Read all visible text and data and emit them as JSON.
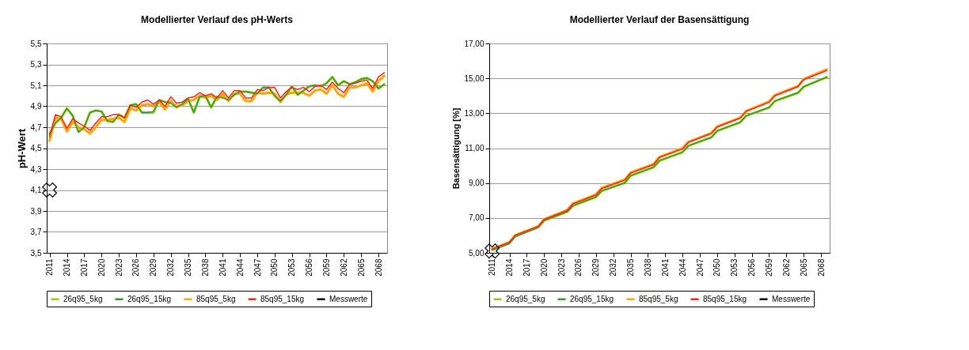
{
  "chart_data": [
    {
      "type": "line",
      "title": "Modellierter Verlauf des pH-Werts",
      "ylabel": "pH-Wert",
      "x": [
        2011,
        2012,
        2013,
        2014,
        2015,
        2016,
        2017,
        2018,
        2019,
        2020,
        2021,
        2022,
        2023,
        2024,
        2025,
        2026,
        2027,
        2028,
        2029,
        2030,
        2031,
        2032,
        2033,
        2034,
        2035,
        2036,
        2037,
        2038,
        2039,
        2040,
        2041,
        2042,
        2043,
        2044,
        2045,
        2046,
        2047,
        2048,
        2049,
        2050,
        2051,
        2052,
        2053,
        2054,
        2055,
        2056,
        2057,
        2058,
        2059,
        2060,
        2061,
        2062,
        2063,
        2064,
        2065,
        2066,
        2067,
        2068,
        2069
      ],
      "xlim": [
        2010.5,
        2069.5
      ],
      "xticks": [
        2011,
        2014,
        2017,
        2020,
        2023,
        2026,
        2029,
        2032,
        2035,
        2038,
        2041,
        2044,
        2047,
        2050,
        2053,
        2056,
        2059,
        2062,
        2065,
        2068
      ],
      "ylim": [
        3.5,
        5.5
      ],
      "yticks": [
        {
          "value": 3.5,
          "label": "3,5"
        },
        {
          "value": 3.7,
          "label": "3,7"
        },
        {
          "value": 3.9,
          "label": "3,9"
        },
        {
          "value": 4.1,
          "label": "4,1"
        },
        {
          "value": 4.3,
          "label": "4,3"
        },
        {
          "value": 4.5,
          "label": "4,5"
        },
        {
          "value": 4.7,
          "label": "4,7"
        },
        {
          "value": 4.9,
          "label": "4,9"
        },
        {
          "value": 5.1,
          "label": "5,1"
        },
        {
          "value": 5.3,
          "label": "5,3"
        },
        {
          "value": 5.5,
          "label": "5,5"
        }
      ],
      "grid": "y",
      "legend": "bottom",
      "series": [
        {
          "name": "26q95_5kg",
          "color": "#99cc00",
          "values": [
            4.64,
            4.74,
            4.79,
            4.88,
            4.81,
            4.66,
            4.7,
            4.84,
            4.86,
            4.85,
            4.76,
            4.75,
            4.82,
            4.79,
            4.91,
            4.92,
            4.84,
            4.84,
            4.84,
            4.96,
            4.94,
            4.94,
            4.89,
            4.92,
            4.97,
            4.84,
            4.99,
            5.0,
            4.89,
            4.99,
            4.99,
            4.96,
            5.01,
            5.04,
            5.04,
            5.03,
            5.02,
            5.08,
            5.08,
            5.0,
            4.95,
            5.01,
            5.09,
            5.01,
            5.05,
            5.09,
            5.1,
            5.09,
            5.12,
            5.18,
            5.1,
            5.14,
            5.11,
            5.13,
            5.16,
            5.17,
            5.14,
            5.07,
            5.11
          ]
        },
        {
          "name": "26q95_15kg",
          "color": "#339933",
          "values": [
            4.63,
            4.74,
            4.79,
            4.88,
            4.81,
            4.65,
            4.7,
            4.84,
            4.86,
            4.85,
            4.76,
            4.75,
            4.82,
            4.79,
            4.91,
            4.92,
            4.84,
            4.84,
            4.85,
            4.96,
            4.94,
            4.93,
            4.89,
            4.92,
            4.97,
            4.84,
            4.99,
            5.0,
            4.89,
            4.99,
            4.98,
            4.96,
            5.01,
            5.04,
            5.04,
            5.03,
            5.02,
            5.08,
            5.08,
            5.0,
            4.95,
            5.01,
            5.09,
            5.01,
            5.05,
            5.09,
            5.1,
            5.09,
            5.12,
            5.18,
            5.1,
            5.14,
            5.11,
            5.13,
            5.16,
            5.17,
            5.14,
            5.07,
            5.11
          ]
        },
        {
          "name": "85q95_5kg",
          "color": "#ffa500",
          "values": [
            4.57,
            4.79,
            4.78,
            4.66,
            4.75,
            4.7,
            4.68,
            4.64,
            4.7,
            4.77,
            4.77,
            4.78,
            4.79,
            4.75,
            4.88,
            4.86,
            4.91,
            4.92,
            4.9,
            4.94,
            4.87,
            4.95,
            4.9,
            4.91,
            4.95,
            4.96,
            5.0,
            4.98,
            5.0,
            4.96,
            5.02,
            4.95,
            5.02,
            5.02,
            4.95,
            4.95,
            5.03,
            5.02,
            5.03,
            5.02,
            4.94,
            5.01,
            5.03,
            5.03,
            5.03,
            5.0,
            5.05,
            5.06,
            5.02,
            5.1,
            5.02,
            4.99,
            5.08,
            5.08,
            5.1,
            5.12,
            5.04,
            5.14,
            5.19
          ]
        },
        {
          "name": "85q95_15kg",
          "color": "#ff2020",
          "values": [
            4.61,
            4.82,
            4.8,
            4.69,
            4.78,
            4.74,
            4.71,
            4.67,
            4.74,
            4.8,
            4.8,
            4.82,
            4.82,
            4.79,
            4.91,
            4.89,
            4.94,
            4.96,
            4.92,
            4.96,
            4.9,
            4.99,
            4.93,
            4.94,
            4.98,
            4.99,
            5.03,
            5.0,
            5.02,
            4.98,
            5.05,
            4.98,
            5.05,
            5.05,
            4.98,
            4.98,
            5.06,
            5.05,
            5.08,
            5.08,
            4.98,
            5.04,
            5.08,
            5.06,
            5.08,
            5.04,
            5.09,
            5.1,
            5.06,
            5.13,
            5.07,
            5.03,
            5.11,
            5.12,
            5.14,
            5.15,
            5.07,
            5.18,
            5.22
          ]
        },
        {
          "name": "Messwerte",
          "type": "scatter",
          "color": "#000000",
          "marker": "cross",
          "x": [
            2011
          ],
          "values": [
            4.1
          ]
        }
      ]
    },
    {
      "type": "line",
      "title": "Modellierter Verlauf der Basensättigung",
      "ylabel": "Basensättigung [%]",
      "xlim": [
        2010.5,
        2069.5
      ],
      "xticks": [
        2011,
        2014,
        2017,
        2020,
        2023,
        2026,
        2029,
        2032,
        2035,
        2038,
        2041,
        2044,
        2047,
        2050,
        2053,
        2056,
        2059,
        2062,
        2065,
        2068
      ],
      "ylim": [
        5,
        17
      ],
      "yticks": [
        {
          "value": 5,
          "label": "5,00"
        },
        {
          "value": 7,
          "label": "7,00"
        },
        {
          "value": 9,
          "label": "9,00"
        },
        {
          "value": 11,
          "label": "11,00"
        },
        {
          "value": 13,
          "label": "13,00"
        },
        {
          "value": 15,
          "label": "15,00"
        },
        {
          "value": 17,
          "label": "17,00"
        }
      ],
      "grid": "y",
      "legend": "bottom",
      "series": [
        {
          "name": "26q95_5kg",
          "color": "#99cc00",
          "x": [
            2011,
            2014,
            2015,
            2019,
            2020,
            2024,
            2025,
            2029,
            2030,
            2034,
            2035,
            2039,
            2040,
            2044,
            2045,
            2049,
            2050,
            2054,
            2055,
            2059,
            2060,
            2064,
            2065,
            2069
          ],
          "values": [
            5.22,
            5.6,
            6.0,
            6.48,
            6.85,
            7.35,
            7.7,
            8.2,
            8.55,
            9.01,
            9.42,
            9.91,
            10.28,
            10.77,
            11.13,
            11.62,
            11.99,
            12.48,
            12.85,
            13.33,
            13.7,
            14.17,
            14.52,
            15.07
          ]
        },
        {
          "name": "26q95_15kg",
          "color": "#339933",
          "x": [
            2011,
            2014,
            2015,
            2019,
            2020,
            2024,
            2025,
            2029,
            2030,
            2034,
            2035,
            2039,
            2040,
            2044,
            2045,
            2049,
            2050,
            2054,
            2055,
            2059,
            2060,
            2064,
            2065,
            2069
          ],
          "values": [
            5.15,
            5.52,
            5.92,
            6.45,
            6.85,
            7.35,
            7.7,
            8.2,
            8.55,
            9.01,
            9.42,
            9.91,
            10.28,
            10.77,
            11.13,
            11.62,
            11.99,
            12.48,
            12.85,
            13.33,
            13.7,
            14.17,
            14.52,
            15.07
          ]
        },
        {
          "name": "85q95_5kg",
          "color": "#ffa500",
          "x": [
            2011,
            2014,
            2015,
            2019,
            2020,
            2024,
            2025,
            2029,
            2030,
            2034,
            2035,
            2039,
            2040,
            2044,
            2045,
            2049,
            2050,
            2054,
            2055,
            2059,
            2060,
            2064,
            2065,
            2069
          ],
          "values": [
            5.22,
            5.6,
            6.0,
            6.53,
            6.93,
            7.45,
            7.83,
            8.35,
            8.72,
            9.2,
            9.6,
            10.09,
            10.5,
            10.99,
            11.36,
            11.87,
            12.24,
            12.75,
            13.13,
            13.67,
            14.04,
            14.56,
            14.96,
            15.51
          ]
        },
        {
          "name": "85q95_15kg",
          "color": "#ff2020",
          "x": [
            2011,
            2014,
            2015,
            2019,
            2020,
            2024,
            2025,
            2029,
            2030,
            2034,
            2035,
            2039,
            2040,
            2044,
            2045,
            2049,
            2050,
            2054,
            2055,
            2059,
            2060,
            2064,
            2065,
            2069
          ],
          "values": [
            5.22,
            5.6,
            6.0,
            6.51,
            6.9,
            7.42,
            7.8,
            8.32,
            8.69,
            9.17,
            9.57,
            10.06,
            10.47,
            10.96,
            11.33,
            11.84,
            12.21,
            12.72,
            13.1,
            13.63,
            14.0,
            14.52,
            14.92,
            15.45
          ]
        },
        {
          "name": "Messwerte",
          "type": "scatter",
          "color": "#000000",
          "marker": "cross",
          "x": [
            2011
          ],
          "values": [
            5.1
          ]
        }
      ]
    }
  ]
}
